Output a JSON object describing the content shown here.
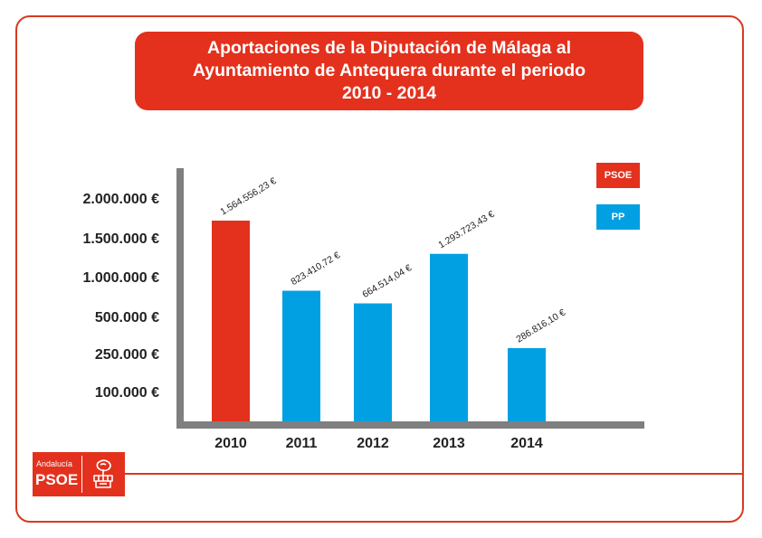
{
  "title": {
    "line1": "Aportaciones de la Diputación de Málaga al",
    "line2": "Ayuntamiento de Antequera durante el periodo",
    "line3": "2010 - 2014"
  },
  "legend": [
    {
      "label": "PSOE",
      "color": "#e3311d"
    },
    {
      "label": "PP",
      "color": "#00a0e3"
    }
  ],
  "logo": {
    "small_text": "Andalucía",
    "big_text": "PSOE"
  },
  "colors": {
    "psoe": "#e3311d",
    "pp": "#00a0e3",
    "axis": "#7f7f7f",
    "frame": "#d63b1f"
  },
  "chart_data": {
    "type": "bar",
    "categories": [
      "2010",
      "2011",
      "2012",
      "2013",
      "2014"
    ],
    "values": [
      1564556.23,
      823410.72,
      664514.04,
      1293723.43,
      286816.1
    ],
    "value_labels": [
      "1.564.556,23 €",
      "823.410,72 €",
      "664.514,04 €",
      "1.293.723,43 €",
      "286.816,10 €"
    ],
    "bar_party": [
      "PSOE",
      "PP",
      "PP",
      "PP",
      "PP"
    ],
    "y_tick_labels": [
      "2.000.000 €",
      "1.500.000 €",
      "1.000.000 €",
      "500.000 €",
      "250.000 €",
      "100.000 €"
    ],
    "y_tick_values": [
      2000000,
      1500000,
      1000000,
      500000,
      250000,
      100000
    ],
    "y_scale": "non-linear (ticks evenly spaced)",
    "grid": false,
    "legend_position": "top-right"
  }
}
